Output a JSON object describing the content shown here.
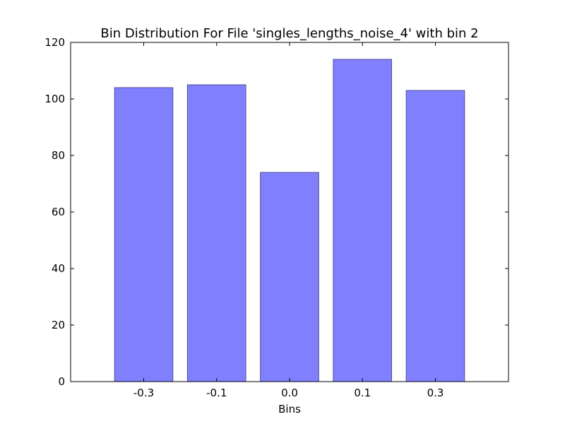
{
  "chart_data": {
    "type": "bar",
    "title": "Bin Distribution For File 'singles_lengths_noise_4' with bin 2",
    "xlabel": "Bins",
    "ylabel": "",
    "categories": [
      "-0.3",
      "-0.1",
      "0.0",
      "0.1",
      "0.3"
    ],
    "values": [
      104,
      105,
      74,
      114,
      103
    ],
    "ylim": [
      0,
      120
    ],
    "yticks": [
      "0",
      "20",
      "40",
      "60",
      "80",
      "100",
      "120"
    ],
    "grid": false,
    "legend": "none",
    "colors": {
      "bar_fill": "#8080ff",
      "bar_edge": "#4d4d99",
      "axes": "#000000"
    }
  }
}
